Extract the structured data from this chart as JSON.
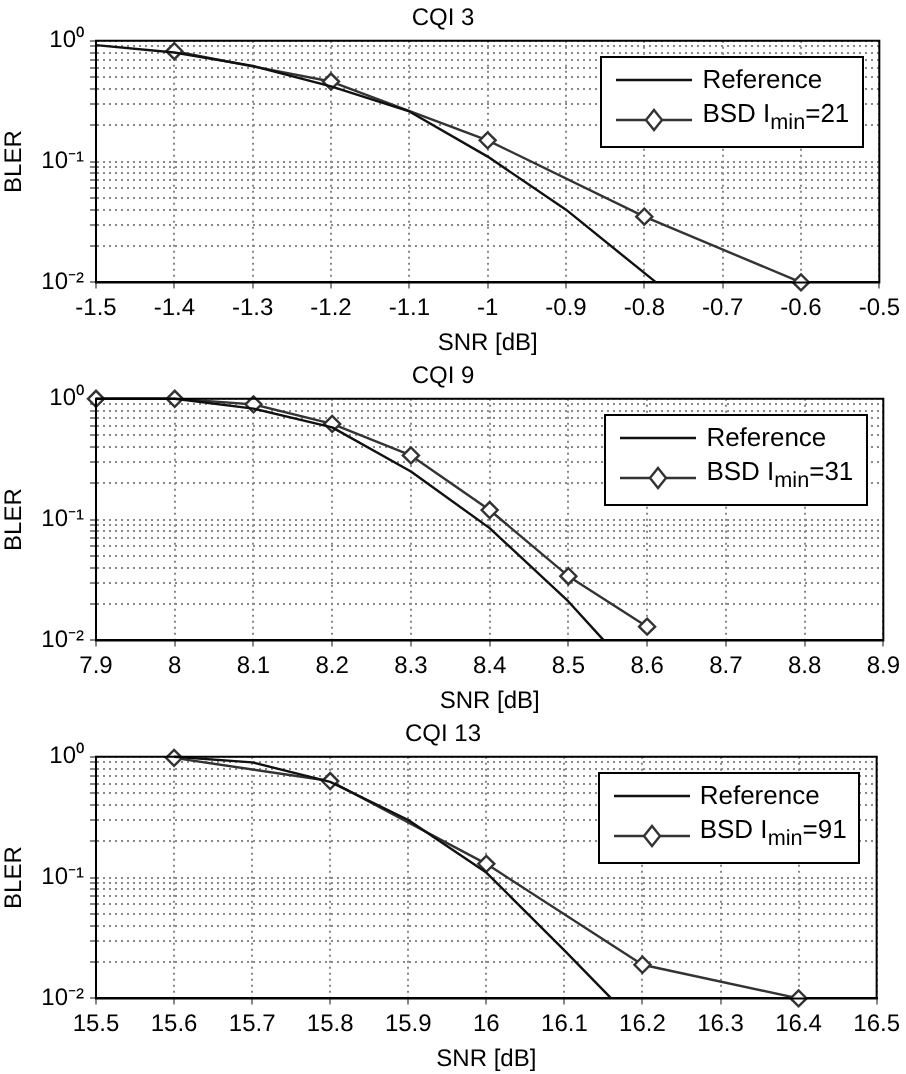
{
  "chart_data": [
    {
      "type": "line",
      "title": "CQI 3",
      "xlabel": "SNR [dB]",
      "ylabel": "BLER",
      "log": "y",
      "grid": true,
      "legend": "top right",
      "xlim": [
        -1.5,
        -0.5
      ],
      "xticks": [
        -1.5,
        -1.4,
        -1.3,
        -1.2,
        -1.1,
        -1,
        -0.9,
        -0.8,
        -0.7,
        -0.6,
        -0.5
      ],
      "ylim": [
        0.01,
        1
      ],
      "yticks": [
        {
          "value": 0.01,
          "label": "10⁻²"
        },
        {
          "value": 0.02,
          "label": null
        },
        {
          "value": 0.03,
          "label": null
        },
        {
          "value": 0.04,
          "label": null
        },
        {
          "value": 0.05,
          "label": null
        },
        {
          "value": 0.06,
          "label": null
        },
        {
          "value": 0.07,
          "label": null
        },
        {
          "value": 0.08,
          "label": null
        },
        {
          "value": 0.09,
          "label": null
        },
        {
          "value": 0.1,
          "label": "10⁻¹"
        },
        {
          "value": 0.2,
          "label": null
        },
        {
          "value": 0.3,
          "label": null
        },
        {
          "value": 0.4,
          "label": null
        },
        {
          "value": 0.5,
          "label": null
        },
        {
          "value": 0.6,
          "label": null
        },
        {
          "value": 0.7,
          "label": null
        },
        {
          "value": 0.8,
          "label": null
        },
        {
          "value": 0.9,
          "label": null
        },
        {
          "value": 1,
          "label": "10⁰"
        }
      ],
      "series": [
        {
          "name": "Reference",
          "color": "#111111",
          "marker": "none",
          "x": [
            -1.5,
            -1.4,
            -1.3,
            -1.2,
            -1.1,
            -1,
            -0.9,
            -0.785
          ],
          "values": [
            0.92,
            0.8,
            0.62,
            0.42,
            0.26,
            0.11,
            0.04,
            0.01
          ]
        },
        {
          "name": "BSD I$_{min}$=21",
          "color": "#333333",
          "marker": "diamond",
          "x": [
            -1.4,
            -1.2,
            -1,
            -0.8,
            -0.6
          ],
          "values": [
            0.82,
            0.46,
            0.15,
            0.035,
            0.01
          ]
        }
      ]
    },
    {
      "type": "line",
      "title": "CQI 9",
      "xlabel": "SNR [dB]",
      "ylabel": "BLER",
      "log": "y",
      "grid": true,
      "legend": "top right",
      "xlim": [
        7.9,
        8.9
      ],
      "xticks": [
        7.9,
        8,
        8.1,
        8.2,
        8.3,
        8.4,
        8.5,
        8.6,
        8.7,
        8.8,
        8.9
      ],
      "ylim": [
        0.01,
        1
      ],
      "yticks": [
        {
          "value": 0.01,
          "label": "10⁻²"
        },
        {
          "value": 0.02,
          "label": null
        },
        {
          "value": 0.03,
          "label": null
        },
        {
          "value": 0.04,
          "label": null
        },
        {
          "value": 0.05,
          "label": null
        },
        {
          "value": 0.06,
          "label": null
        },
        {
          "value": 0.07,
          "label": null
        },
        {
          "value": 0.08,
          "label": null
        },
        {
          "value": 0.09,
          "label": null
        },
        {
          "value": 0.1,
          "label": "10⁻¹"
        },
        {
          "value": 0.2,
          "label": null
        },
        {
          "value": 0.3,
          "label": null
        },
        {
          "value": 0.4,
          "label": null
        },
        {
          "value": 0.5,
          "label": null
        },
        {
          "value": 0.6,
          "label": null
        },
        {
          "value": 0.7,
          "label": null
        },
        {
          "value": 0.8,
          "label": null
        },
        {
          "value": 0.9,
          "label": null
        },
        {
          "value": 1,
          "label": "10⁰"
        }
      ],
      "series": [
        {
          "name": "Reference",
          "color": "#111111",
          "marker": "none",
          "x": [
            7.9,
            8,
            8.1,
            8.2,
            8.3,
            8.4,
            8.5,
            8.545
          ],
          "values": [
            1,
            1,
            0.83,
            0.58,
            0.25,
            0.085,
            0.021,
            0.01
          ]
        },
        {
          "name": "BSD I$_{min}$=31",
          "color": "#333333",
          "marker": "diamond",
          "x": [
            7.9,
            8,
            8.1,
            8.2,
            8.3,
            8.4,
            8.5,
            8.6
          ],
          "values": [
            1,
            1,
            0.9,
            0.62,
            0.34,
            0.12,
            0.034,
            0.013
          ]
        }
      ]
    },
    {
      "type": "line",
      "title": "CQI 13",
      "xlabel": "SNR [dB]",
      "ylabel": "BLER",
      "log": "y",
      "grid": true,
      "legend": "top right",
      "xlim": [
        15.5,
        16.5
      ],
      "xticks": [
        15.5,
        15.6,
        15.7,
        15.8,
        15.9,
        16,
        16.1,
        16.2,
        16.3,
        16.4,
        16.5
      ],
      "ylim": [
        0.01,
        1
      ],
      "yticks": [
        {
          "value": 0.01,
          "label": "10⁻²"
        },
        {
          "value": 0.02,
          "label": null
        },
        {
          "value": 0.03,
          "label": null
        },
        {
          "value": 0.04,
          "label": null
        },
        {
          "value": 0.05,
          "label": null
        },
        {
          "value": 0.06,
          "label": null
        },
        {
          "value": 0.07,
          "label": null
        },
        {
          "value": 0.08,
          "label": null
        },
        {
          "value": 0.09,
          "label": null
        },
        {
          "value": 0.1,
          "label": "10⁻¹"
        },
        {
          "value": 0.2,
          "label": null
        },
        {
          "value": 0.3,
          "label": null
        },
        {
          "value": 0.4,
          "label": null
        },
        {
          "value": 0.5,
          "label": null
        },
        {
          "value": 0.6,
          "label": null
        },
        {
          "value": 0.7,
          "label": null
        },
        {
          "value": 0.8,
          "label": null
        },
        {
          "value": 0.9,
          "label": null
        },
        {
          "value": 1,
          "label": "10⁰"
        }
      ],
      "series": [
        {
          "name": "Reference",
          "color": "#111111",
          "marker": "none",
          "x": [
            15.6,
            15.7,
            15.8,
            15.9,
            16,
            16.1,
            16.16
          ],
          "values": [
            1,
            0.9,
            0.62,
            0.3,
            0.11,
            0.025,
            0.01
          ]
        },
        {
          "name": "BSD I$_{min}$=91",
          "color": "#333333",
          "marker": "diamond",
          "x": [
            15.6,
            15.8,
            16,
            16.2,
            16.4
          ],
          "values": [
            0.98,
            0.63,
            0.13,
            0.019,
            0.01
          ]
        }
      ]
    }
  ]
}
